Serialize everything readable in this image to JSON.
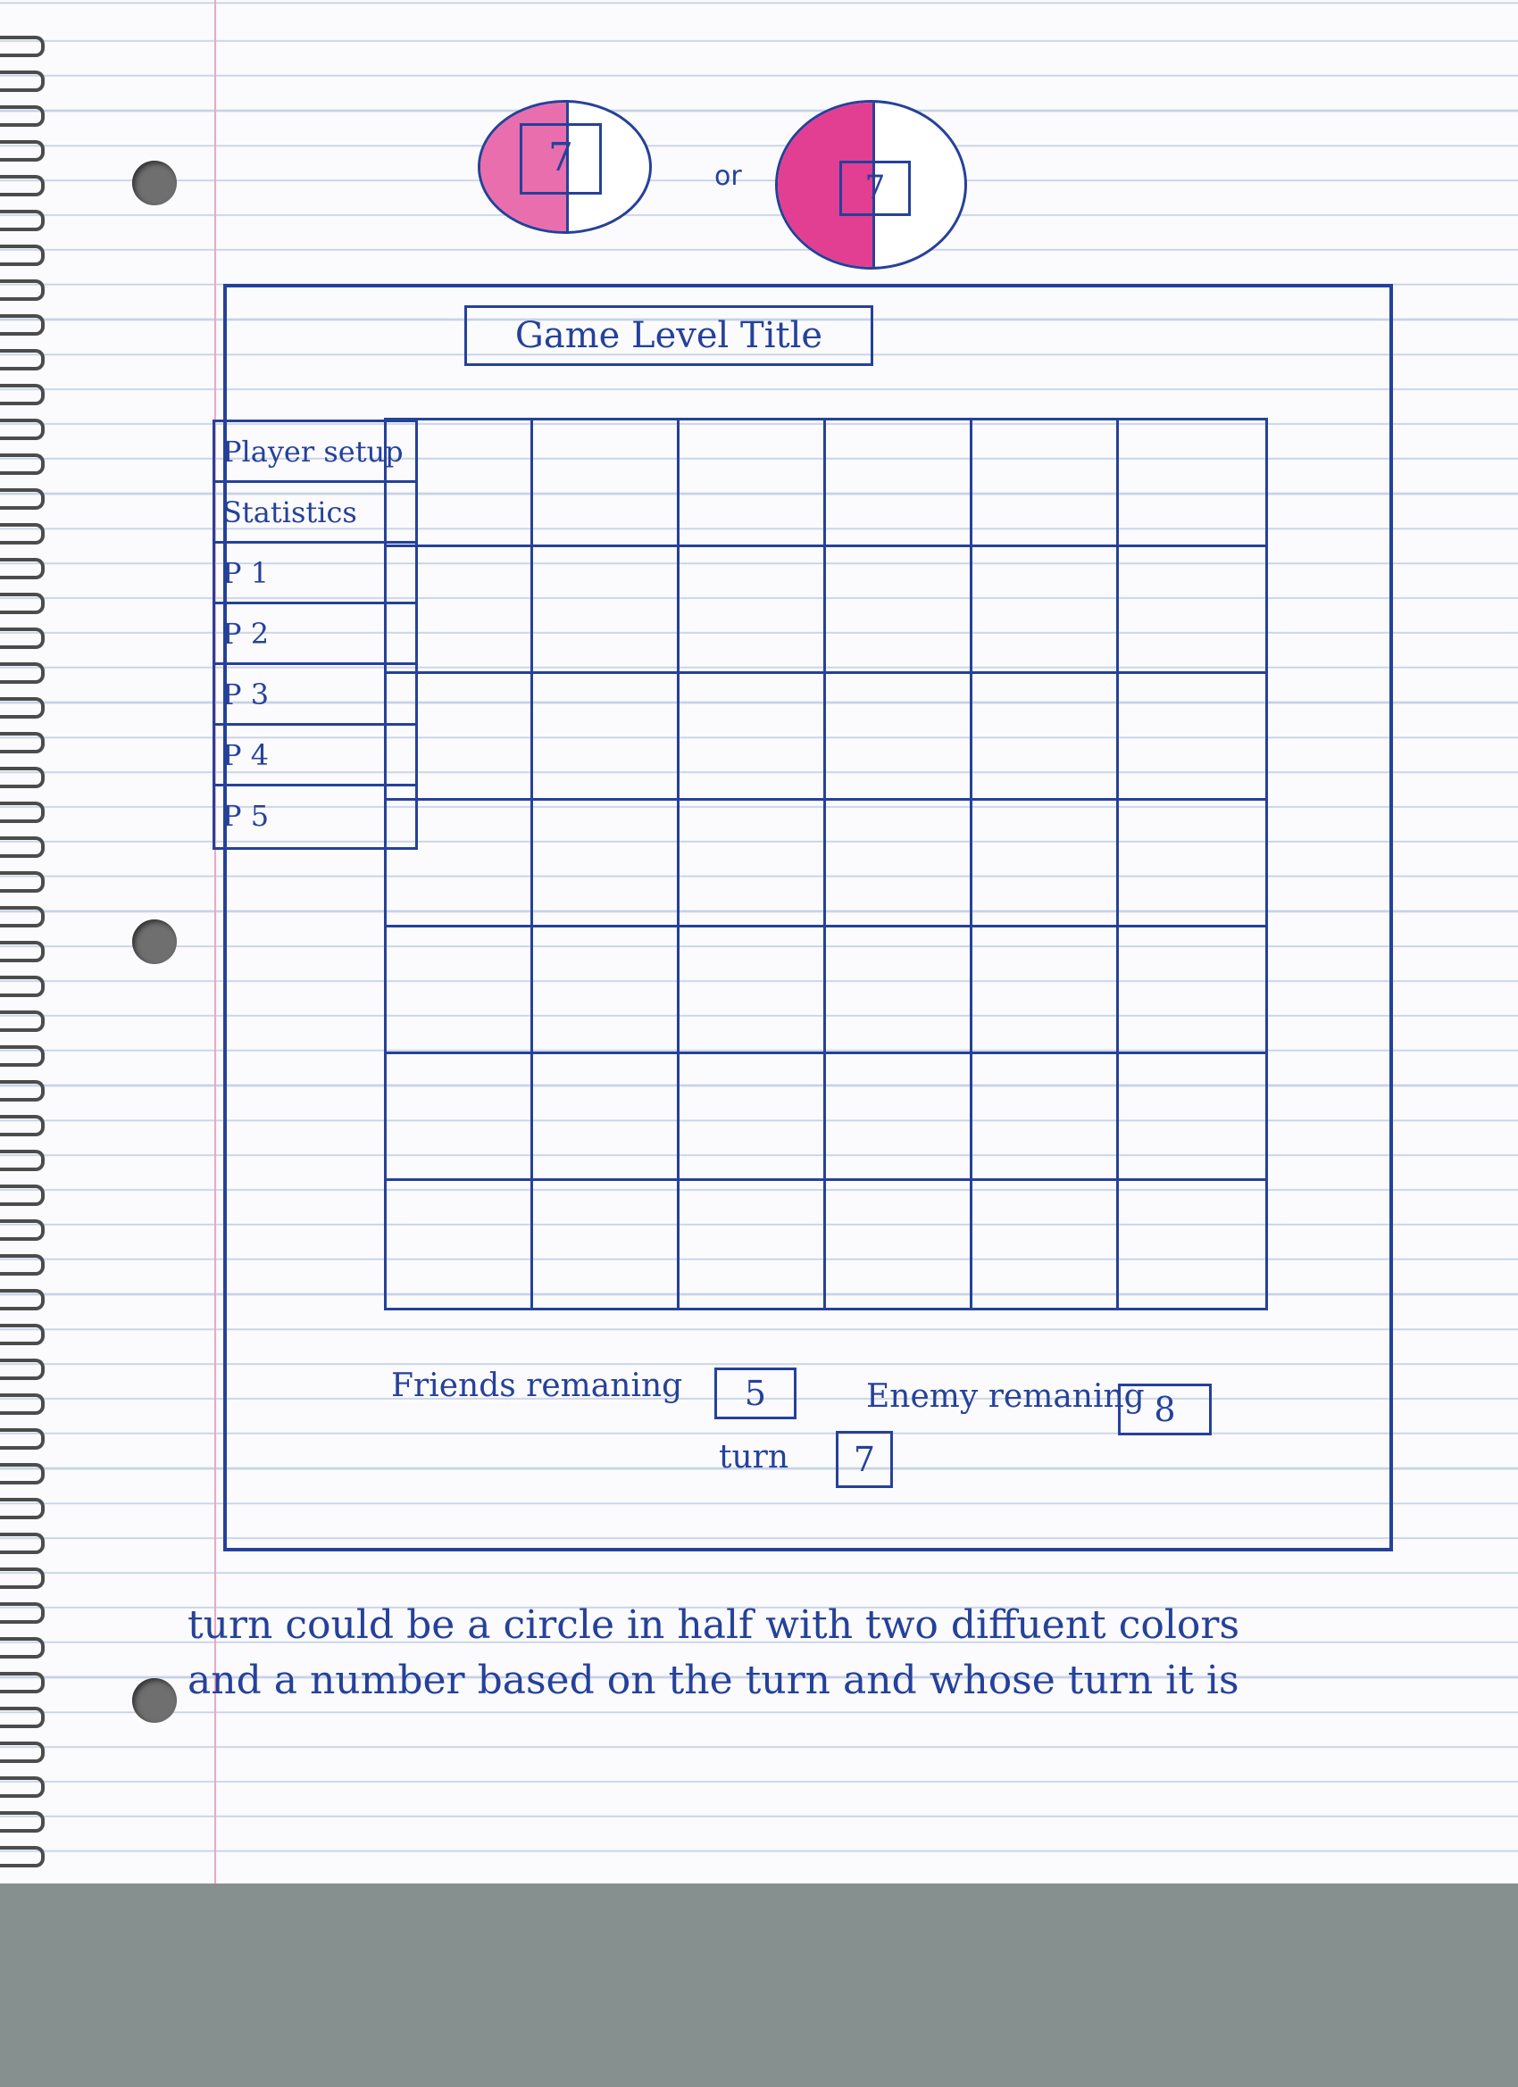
{
  "turn_indicator_options": {
    "option_a": {
      "number": "7",
      "fill_color": "#e23e92",
      "fill_fraction": 0.5
    },
    "separator": "or",
    "option_b": {
      "number": "7",
      "fill_color": "#e23e92",
      "fill_fraction": 0.5
    }
  },
  "window": {
    "title": "Game Level Title"
  },
  "menu": {
    "items": [
      {
        "label": "Player setup"
      },
      {
        "label": "Statistics"
      },
      {
        "label": "P 1"
      },
      {
        "label": "P 2"
      },
      {
        "label": "P 3"
      },
      {
        "label": "P 4"
      },
      {
        "label": "P 5"
      }
    ]
  },
  "board": {
    "columns": 6,
    "rows": 7
  },
  "status": {
    "friends_label": "Friends remaning",
    "friends_value": "5",
    "enemy_label": "Enemy remaning",
    "enemy_value": "8",
    "turn_label": "turn",
    "turn_value": "7"
  },
  "note": "turn could be a circle in half with two diffuent colors and a number based on the turn and whose turn it is",
  "colors": {
    "ink": "#25419a",
    "highlight": "#e23e92",
    "paper_line": "#c7d3e6",
    "margin": "#f0a6c4"
  }
}
